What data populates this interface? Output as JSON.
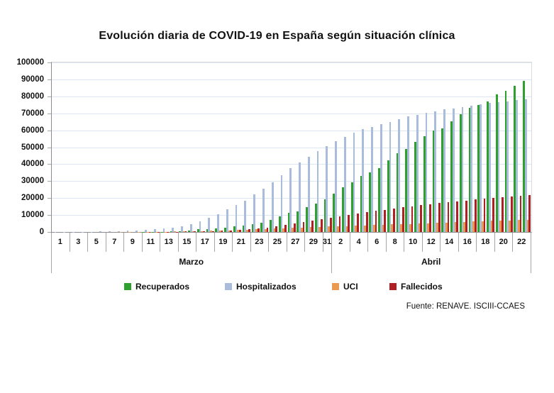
{
  "title": "Evolución diaria de COVID-19 en España según situación clínica",
  "source": "Fuente: RENAVE. ISCIII-CCAES",
  "colors": {
    "grid": "#dde5f0",
    "axis": "#8c8c8c",
    "tick": "#a6a6a6",
    "frame": "#dcdcdc",
    "text": "#111111"
  },
  "chart_data": {
    "type": "bar",
    "title": "Evolución diaria de COVID-19 en España según situación clínica",
    "xlabel": "",
    "ylabel": "",
    "ylim": [
      0,
      100000
    ],
    "ytick_step": 10000,
    "grid": true,
    "legend_position": "bottom",
    "x_axis": {
      "months": [
        {
          "label": "Marzo",
          "days": 31,
          "tick_labels": [
            "1",
            "3",
            "5",
            "7",
            "9",
            "11",
            "13",
            "15",
            "17",
            "19",
            "21",
            "23",
            "25",
            "27",
            "29",
            "31"
          ]
        },
        {
          "label": "Abril",
          "days": 22,
          "tick_labels": [
            "2",
            "4",
            "6",
            "8",
            "10",
            "12",
            "14",
            "16",
            "18",
            "20",
            "22"
          ]
        }
      ]
    },
    "categories": [
      "1 Mar",
      "2 Mar",
      "3 Mar",
      "4 Mar",
      "5 Mar",
      "6 Mar",
      "7 Mar",
      "8 Mar",
      "9 Mar",
      "10 Mar",
      "11 Mar",
      "12 Mar",
      "13 Mar",
      "14 Mar",
      "15 Mar",
      "16 Mar",
      "17 Mar",
      "18 Mar",
      "19 Mar",
      "20 Mar",
      "21 Mar",
      "22 Mar",
      "23 Mar",
      "24 Mar",
      "25 Mar",
      "26 Mar",
      "27 Mar",
      "28 Mar",
      "29 Mar",
      "30 Mar",
      "31 Mar",
      "1 Abr",
      "2 Abr",
      "3 Abr",
      "4 Abr",
      "5 Abr",
      "6 Abr",
      "7 Abr",
      "8 Abr",
      "9 Abr",
      "10 Abr",
      "11 Abr",
      "12 Abr",
      "13 Abr",
      "14 Abr",
      "15 Abr",
      "16 Abr",
      "17 Abr",
      "18 Abr",
      "19 Abr",
      "20 Abr",
      "21 Abr",
      "22 Abr"
    ],
    "series": [
      {
        "name": "Recuperados",
        "color": "#2DA02D",
        "values": [
          2,
          2,
          2,
          2,
          2,
          2,
          2,
          3,
          30,
          32,
          183,
          189,
          193,
          517,
          530,
          1030,
          1590,
          1800,
          2200,
          2600,
          3200,
          3900,
          4700,
          5400,
          7000,
          9400,
          11100,
          12300,
          14700,
          16800,
          19400,
          22800,
          26200,
          29200,
          32900,
          35100,
          37800,
          42300,
          46500,
          49000,
          53100,
          56400,
          60000,
          61300,
          65400,
          69300,
          73300,
          75100,
          77200,
          81000,
          83100,
          86200,
          89250
        ]
      },
      {
        "name": "Hospitalizados",
        "color": "#A9BCDC",
        "values": [
          50,
          70,
          100,
          140,
          190,
          260,
          350,
          480,
          650,
          900,
          1200,
          1600,
          2100,
          2700,
          3400,
          4600,
          6300,
          8200,
          10500,
          13300,
          15800,
          18500,
          22000,
          25500,
          29500,
          33500,
          37500,
          41000,
          44500,
          47500,
          50500,
          53500,
          56000,
          58500,
          60500,
          62000,
          63500,
          65000,
          66500,
          68000,
          69200,
          70300,
          71300,
          72200,
          73000,
          73800,
          74600,
          75300,
          76000,
          76600,
          77200,
          77700,
          78200
        ]
      },
      {
        "name": "UCI",
        "color": "#E99B52",
        "values": [
          5,
          6,
          8,
          10,
          13,
          17,
          25,
          35,
          50,
          70,
          95,
          130,
          175,
          230,
          300,
          400,
          510,
          640,
          800,
          980,
          1150,
          1350,
          1550,
          1750,
          1950,
          2150,
          2350,
          2550,
          2750,
          2950,
          3150,
          3350,
          3550,
          3750,
          3950,
          4150,
          4300,
          4450,
          4600,
          4750,
          4900,
          5100,
          5300,
          5500,
          5700,
          5900,
          6100,
          6300,
          6500,
          6650,
          6800,
          6950,
          7100
        ]
      },
      {
        "name": "Fallecidos",
        "color": "#B01F24",
        "values": [
          0,
          0,
          1,
          2,
          3,
          5,
          8,
          10,
          17,
          28,
          54,
          84,
          120,
          195,
          290,
          340,
          490,
          600,
          770,
          1000,
          1330,
          1720,
          2180,
          2700,
          3430,
          4090,
          4860,
          5690,
          6530,
          7340,
          8190,
          9050,
          10000,
          10940,
          11750,
          12420,
          13060,
          13800,
          14560,
          15240,
          15840,
          16480,
          17000,
          17500,
          18060,
          18600,
          19130,
          19600,
          20050,
          20450,
          20850,
          21280,
          21720
        ]
      }
    ]
  },
  "legend": {
    "items": [
      "Recuperados",
      "Hospitalizados",
      "UCI",
      "Fallecidos"
    ]
  }
}
